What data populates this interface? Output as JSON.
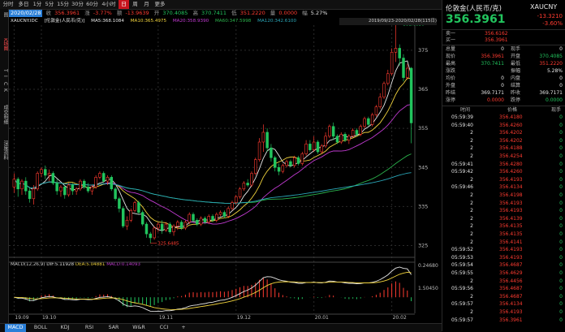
{
  "toolbar": {
    "items": [
      {
        "label": "分时",
        "active": false
      },
      {
        "label": "多日",
        "active": false
      },
      {
        "label": "1分",
        "active": false
      },
      {
        "label": "5分",
        "active": false
      },
      {
        "label": "15分",
        "active": false
      },
      {
        "label": "30分",
        "active": false
      },
      {
        "label": "60分",
        "active": false
      },
      {
        "label": "4小时",
        "active": false
      },
      {
        "label": "日",
        "active": true
      },
      {
        "label": "周",
        "active": false
      },
      {
        "label": "月",
        "active": false
      },
      {
        "label": "更多",
        "active": false
      }
    ]
  },
  "leftstrip": [
    "图",
    "K线图",
    "T",
    "I",
    "C",
    "K",
    "成交明细",
    "深度资料"
  ],
  "inforow": {
    "date": "2020/02/28",
    "close_label": "收",
    "close": "356.3961",
    "change_label": "涨",
    "change": "-3.77%",
    "change2_label": "额",
    "change2": "-13.9639",
    "open_label": "开",
    "open": "370.4085",
    "high_label": "高",
    "high": "370.7411",
    "low_label": "低",
    "low": "351.2220",
    "vol_label": "量",
    "vol": "0.0000",
    "amp_label": "幅",
    "amp": "5.27%"
  },
  "marow": {
    "symbol": "XAUCNY.IDC",
    "name": "[伦敦金(人民币/克)]",
    "ma5": "MA5:368.1084",
    "ma10": "MA10:365.4975",
    "ma20": "MA20:358.9390",
    "ma60": "MA60:347.5998",
    "ma120": "MA120:342.6100",
    "range": "2019/09/23-2020/02/28(115日)"
  },
  "chart_data": {
    "type": "candlestick",
    "price_axis": {
      "ylim": [
        322,
        381
      ],
      "ticks": [
        "375",
        "365",
        "355",
        "345",
        "335",
        "325"
      ]
    },
    "x_labels": [
      "19.09",
      "19.10",
      "19.11",
      "19.12",
      "20.01",
      "20.02"
    ],
    "annotations": {
      "high": "381.6836",
      "low": "325.6485"
    },
    "macd_label": "MACD(12,26,9)",
    "dif": "DIF:5.11928",
    "dea": "DEA:5.04881",
    "macd": "MACD:0.14093",
    "macd_ticks": [
      "0.24680",
      "1.50450"
    ],
    "candles": [
      {
        "o": 340.0,
        "c": 342.0,
        "h": 343.5,
        "l": 338.5
      },
      {
        "o": 342.0,
        "c": 339.5,
        "h": 342.5,
        "l": 337.5
      },
      {
        "o": 339.5,
        "c": 341.5,
        "h": 342.0,
        "l": 338.0
      },
      {
        "o": 341.5,
        "c": 339.0,
        "h": 342.5,
        "l": 338.0
      },
      {
        "o": 339.0,
        "c": 337.0,
        "h": 340.0,
        "l": 336.0
      },
      {
        "o": 337.0,
        "c": 339.5,
        "h": 340.5,
        "l": 335.5
      },
      {
        "o": 339.5,
        "c": 343.5,
        "h": 344.0,
        "l": 339.0
      },
      {
        "o": 343.5,
        "c": 344.5,
        "h": 345.0,
        "l": 342.5
      },
      {
        "o": 344.5,
        "c": 343.0,
        "h": 345.5,
        "l": 342.0
      },
      {
        "o": 343.0,
        "c": 343.5,
        "h": 344.5,
        "l": 341.5
      },
      {
        "o": 343.5,
        "c": 341.0,
        "h": 344.0,
        "l": 340.5
      },
      {
        "o": 341.0,
        "c": 339.0,
        "h": 342.0,
        "l": 338.0
      },
      {
        "o": 339.0,
        "c": 340.0,
        "h": 340.5,
        "l": 337.5
      },
      {
        "o": 340.0,
        "c": 338.0,
        "h": 340.5,
        "l": 337.0
      },
      {
        "o": 338.0,
        "c": 340.5,
        "h": 341.0,
        "l": 337.5
      },
      {
        "o": 340.5,
        "c": 339.0,
        "h": 341.0,
        "l": 338.0
      },
      {
        "o": 339.0,
        "c": 339.5,
        "h": 340.0,
        "l": 338.0
      },
      {
        "o": 339.5,
        "c": 341.5,
        "h": 342.0,
        "l": 339.0
      },
      {
        "o": 341.5,
        "c": 340.0,
        "h": 342.0,
        "l": 339.5
      },
      {
        "o": 340.0,
        "c": 339.0,
        "h": 341.0,
        "l": 338.5
      },
      {
        "o": 339.0,
        "c": 340.0,
        "h": 340.5,
        "l": 338.0
      },
      {
        "o": 340.0,
        "c": 342.5,
        "h": 343.0,
        "l": 339.5
      },
      {
        "o": 342.5,
        "c": 343.5,
        "h": 344.0,
        "l": 342.0
      },
      {
        "o": 343.5,
        "c": 341.5,
        "h": 344.0,
        "l": 341.0
      },
      {
        "o": 341.5,
        "c": 342.5,
        "h": 343.0,
        "l": 340.5
      },
      {
        "o": 342.5,
        "c": 339.5,
        "h": 343.0,
        "l": 339.0
      },
      {
        "o": 339.5,
        "c": 337.0,
        "h": 340.0,
        "l": 336.5
      },
      {
        "o": 337.0,
        "c": 334.5,
        "h": 337.5,
        "l": 333.5
      },
      {
        "o": 334.5,
        "c": 330.0,
        "h": 335.0,
        "l": 329.5
      },
      {
        "o": 330.0,
        "c": 331.5,
        "h": 332.5,
        "l": 329.0
      },
      {
        "o": 331.5,
        "c": 334.0,
        "h": 334.5,
        "l": 331.0
      },
      {
        "o": 334.0,
        "c": 336.0,
        "h": 336.5,
        "l": 333.5
      },
      {
        "o": 336.0,
        "c": 333.5,
        "h": 336.5,
        "l": 333.0
      },
      {
        "o": 333.5,
        "c": 330.5,
        "h": 334.0,
        "l": 330.0
      },
      {
        "o": 330.5,
        "c": 328.0,
        "h": 331.0,
        "l": 327.0
      },
      {
        "o": 328.0,
        "c": 327.0,
        "h": 328.5,
        "l": 325.6
      },
      {
        "o": 327.0,
        "c": 329.5,
        "h": 330.0,
        "l": 326.5
      },
      {
        "o": 329.5,
        "c": 330.5,
        "h": 331.0,
        "l": 328.5
      },
      {
        "o": 330.5,
        "c": 329.0,
        "h": 331.5,
        "l": 328.0
      },
      {
        "o": 329.0,
        "c": 330.5,
        "h": 331.0,
        "l": 328.5
      },
      {
        "o": 330.5,
        "c": 328.5,
        "h": 331.0,
        "l": 328.0
      },
      {
        "o": 328.5,
        "c": 330.0,
        "h": 330.5,
        "l": 327.5
      },
      {
        "o": 330.0,
        "c": 331.0,
        "h": 331.5,
        "l": 329.0
      },
      {
        "o": 331.0,
        "c": 329.5,
        "h": 331.5,
        "l": 329.0
      },
      {
        "o": 329.5,
        "c": 331.0,
        "h": 331.5,
        "l": 329.0
      },
      {
        "o": 331.0,
        "c": 333.0,
        "h": 333.5,
        "l": 330.5
      },
      {
        "o": 333.0,
        "c": 331.5,
        "h": 333.5,
        "l": 331.0
      },
      {
        "o": 331.5,
        "c": 330.5,
        "h": 332.0,
        "l": 330.0
      },
      {
        "o": 330.5,
        "c": 332.0,
        "h": 332.5,
        "l": 330.0
      },
      {
        "o": 332.0,
        "c": 331.0,
        "h": 332.5,
        "l": 330.5
      },
      {
        "o": 331.0,
        "c": 332.5,
        "h": 333.0,
        "l": 330.5
      },
      {
        "o": 332.5,
        "c": 331.5,
        "h": 333.0,
        "l": 331.0
      },
      {
        "o": 331.5,
        "c": 333.0,
        "h": 333.5,
        "l": 331.0
      },
      {
        "o": 333.0,
        "c": 333.5,
        "h": 334.0,
        "l": 332.5
      },
      {
        "o": 333.5,
        "c": 332.5,
        "h": 334.0,
        "l": 332.0
      },
      {
        "o": 332.5,
        "c": 334.5,
        "h": 335.0,
        "l": 332.0
      },
      {
        "o": 334.5,
        "c": 336.0,
        "h": 336.5,
        "l": 334.0
      },
      {
        "o": 336.0,
        "c": 337.5,
        "h": 338.0,
        "l": 335.5
      },
      {
        "o": 337.5,
        "c": 339.5,
        "h": 340.0,
        "l": 337.0
      },
      {
        "o": 339.5,
        "c": 341.0,
        "h": 341.5,
        "l": 339.0
      },
      {
        "o": 341.0,
        "c": 340.5,
        "h": 342.0,
        "l": 340.0
      },
      {
        "o": 340.5,
        "c": 343.5,
        "h": 344.0,
        "l": 340.0
      },
      {
        "o": 343.5,
        "c": 347.0,
        "h": 347.5,
        "l": 343.0
      },
      {
        "o": 347.0,
        "c": 351.5,
        "h": 352.5,
        "l": 346.5
      },
      {
        "o": 351.5,
        "c": 354.0,
        "h": 356.0,
        "l": 349.0
      },
      {
        "o": 354.0,
        "c": 350.0,
        "h": 355.0,
        "l": 349.0
      },
      {
        "o": 350.0,
        "c": 347.5,
        "h": 351.0,
        "l": 346.5
      },
      {
        "o": 347.5,
        "c": 345.0,
        "h": 348.0,
        "l": 344.0
      },
      {
        "o": 345.0,
        "c": 344.0,
        "h": 346.0,
        "l": 343.0
      },
      {
        "o": 344.0,
        "c": 345.5,
        "h": 346.0,
        "l": 343.5
      },
      {
        "o": 345.5,
        "c": 346.5,
        "h": 347.0,
        "l": 345.0
      },
      {
        "o": 346.5,
        "c": 345.5,
        "h": 347.0,
        "l": 345.0
      },
      {
        "o": 345.5,
        "c": 347.5,
        "h": 348.0,
        "l": 345.0
      },
      {
        "o": 347.5,
        "c": 346.0,
        "h": 348.0,
        "l": 345.5
      },
      {
        "o": 346.0,
        "c": 348.5,
        "h": 349.0,
        "l": 345.5
      },
      {
        "o": 348.5,
        "c": 351.0,
        "h": 352.0,
        "l": 348.0
      },
      {
        "o": 351.0,
        "c": 349.5,
        "h": 352.0,
        "l": 349.0
      },
      {
        "o": 349.5,
        "c": 351.5,
        "h": 353.0,
        "l": 349.0
      },
      {
        "o": 351.5,
        "c": 349.0,
        "h": 352.0,
        "l": 348.5
      },
      {
        "o": 349.0,
        "c": 350.5,
        "h": 351.0,
        "l": 348.5
      },
      {
        "o": 350.5,
        "c": 353.0,
        "h": 354.0,
        "l": 350.0
      },
      {
        "o": 353.0,
        "c": 355.5,
        "h": 356.0,
        "l": 352.5
      },
      {
        "o": 355.5,
        "c": 353.0,
        "h": 356.5,
        "l": 352.0
      },
      {
        "o": 353.0,
        "c": 351.5,
        "h": 353.5,
        "l": 351.0
      },
      {
        "o": 351.5,
        "c": 353.5,
        "h": 354.0,
        "l": 351.0
      },
      {
        "o": 353.5,
        "c": 352.0,
        "h": 354.0,
        "l": 351.5
      },
      {
        "o": 352.0,
        "c": 353.0,
        "h": 353.5,
        "l": 351.0
      },
      {
        "o": 353.0,
        "c": 354.5,
        "h": 355.0,
        "l": 352.5
      },
      {
        "o": 354.5,
        "c": 353.5,
        "h": 355.0,
        "l": 353.0
      },
      {
        "o": 353.5,
        "c": 355.5,
        "h": 356.0,
        "l": 353.0
      },
      {
        "o": 355.5,
        "c": 357.5,
        "h": 358.0,
        "l": 355.0
      },
      {
        "o": 357.5,
        "c": 356.0,
        "h": 358.0,
        "l": 355.5
      },
      {
        "o": 356.0,
        "c": 358.5,
        "h": 359.0,
        "l": 355.5
      },
      {
        "o": 358.5,
        "c": 360.5,
        "h": 361.0,
        "l": 358.0
      },
      {
        "o": 360.5,
        "c": 363.0,
        "h": 364.0,
        "l": 360.0
      },
      {
        "o": 363.0,
        "c": 366.5,
        "h": 367.0,
        "l": 362.5
      },
      {
        "o": 366.5,
        "c": 369.0,
        "h": 370.0,
        "l": 366.0
      },
      {
        "o": 369.0,
        "c": 374.5,
        "h": 375.5,
        "l": 368.5
      },
      {
        "o": 374.5,
        "c": 375.5,
        "h": 381.7,
        "l": 372.0
      },
      {
        "o": 375.5,
        "c": 373.0,
        "h": 376.5,
        "l": 371.0
      },
      {
        "o": 373.0,
        "c": 368.0,
        "h": 374.0,
        "l": 367.0
      },
      {
        "o": 368.0,
        "c": 370.4,
        "h": 371.5,
        "l": 367.5
      },
      {
        "o": 370.4,
        "c": 356.4,
        "h": 370.7,
        "l": 351.2
      }
    ]
  },
  "rpanel": {
    "title": "伦敦金(人民币/克)",
    "code": "XAUCNY",
    "price": "356.3961",
    "change": "-13.3210",
    "change_pct": "-3.60%",
    "sell_label": "卖一",
    "sell": "356.6162",
    "buy_label": "买一",
    "buy": "356.3961",
    "stats": [
      {
        "l1": "总量",
        "v1": "0",
        "l2": "现手",
        "v2": "0",
        "c1": "white",
        "c2": "white"
      },
      {
        "l1": "现价",
        "v1": "356.3961",
        "l2": "开盘",
        "v2": "370.4085",
        "c1": "red",
        "c2": "green"
      },
      {
        "l1": "最高",
        "v1": "370.7411",
        "l2": "最低",
        "v2": "351.2220",
        "c1": "green",
        "c2": "red"
      },
      {
        "l1": "涨跌",
        "v1": "",
        "l2": "振幅",
        "v2": "5.28%",
        "c1": "white",
        "c2": "white"
      },
      {
        "l1": "均价",
        "v1": "0",
        "l2": "内盘",
        "v2": "0",
        "c1": "white",
        "c2": "white"
      },
      {
        "l1": "外盘",
        "v1": "0",
        "l2": "结算",
        "v2": "0",
        "c1": "white",
        "c2": "white"
      },
      {
        "l1": "昨结",
        "v1": "369.7171",
        "l2": "昨收",
        "v2": "369.7171",
        "c1": "white",
        "c2": "white"
      },
      {
        "l1": "涨停",
        "v1": "0.0000",
        "l2": "跌停",
        "v2": "0.0000",
        "c1": "red",
        "c2": "green"
      }
    ],
    "tick_headers": [
      "时间",
      "价格",
      "现手"
    ],
    "ticks": [
      {
        "t": "05:59:39",
        "p": "356.4180",
        "v": "0"
      },
      {
        "t": "05:59:40",
        "p": "356.4260",
        "v": "0"
      },
      {
        "t": "2",
        "p": "356.4202",
        "v": "0"
      },
      {
        "t": "2",
        "p": "356.4202",
        "v": "0"
      },
      {
        "t": "2",
        "p": "356.4188",
        "v": "0"
      },
      {
        "t": "2",
        "p": "356.4254",
        "v": "0"
      },
      {
        "t": "05:59:41",
        "p": "356.4280",
        "v": "0"
      },
      {
        "t": "05:59:42",
        "p": "356.4260",
        "v": "0"
      },
      {
        "t": "2",
        "p": "356.4193",
        "v": "0"
      },
      {
        "t": "05:59:46",
        "p": "356.4134",
        "v": "0"
      },
      {
        "t": "2",
        "p": "356.4198",
        "v": "0"
      },
      {
        "t": "2",
        "p": "356.4193",
        "v": "0"
      },
      {
        "t": "2",
        "p": "356.4193",
        "v": "0"
      },
      {
        "t": "2",
        "p": "356.4139",
        "v": "0"
      },
      {
        "t": "2",
        "p": "356.4135",
        "v": "0"
      },
      {
        "t": "2",
        "p": "356.4135",
        "v": "0"
      },
      {
        "t": "2",
        "p": "356.4141",
        "v": "0"
      },
      {
        "t": "05:59:52",
        "p": "356.4193",
        "v": "0"
      },
      {
        "t": "05:59:53",
        "p": "356.4193",
        "v": "0"
      },
      {
        "t": "05:59:54",
        "p": "356.4687",
        "v": "0"
      },
      {
        "t": "05:59:55",
        "p": "356.4629",
        "v": "0"
      },
      {
        "t": "2",
        "p": "356.4456",
        "v": "0"
      },
      {
        "t": "05:59:56",
        "p": "356.4687",
        "v": "0"
      },
      {
        "t": "2",
        "p": "356.4687",
        "v": "0"
      },
      {
        "t": "05:59:57",
        "p": "356.4134",
        "v": "0"
      },
      {
        "t": "2",
        "p": "356.4193",
        "v": "0"
      },
      {
        "t": "05:59:57",
        "p": "356.3961",
        "v": "0"
      }
    ]
  },
  "bottomtabs": [
    {
      "label": "MACD",
      "active": true
    },
    {
      "label": "BOLL",
      "active": false
    },
    {
      "label": "KDJ",
      "active": false
    },
    {
      "label": "RSI",
      "active": false
    },
    {
      "label": "SAR",
      "active": false
    },
    {
      "label": "W&R",
      "active": false
    },
    {
      "label": "CCI",
      "active": false
    },
    {
      "label": "+",
      "active": false
    }
  ],
  "colors": {
    "up": "#ff3b30",
    "down": "#22c55e",
    "ma5": "#e6e6e6",
    "ma10": "#f2d43d",
    "ma20": "#c03ad0",
    "ma60": "#2bb24c",
    "ma120": "#2aa6b8"
  }
}
